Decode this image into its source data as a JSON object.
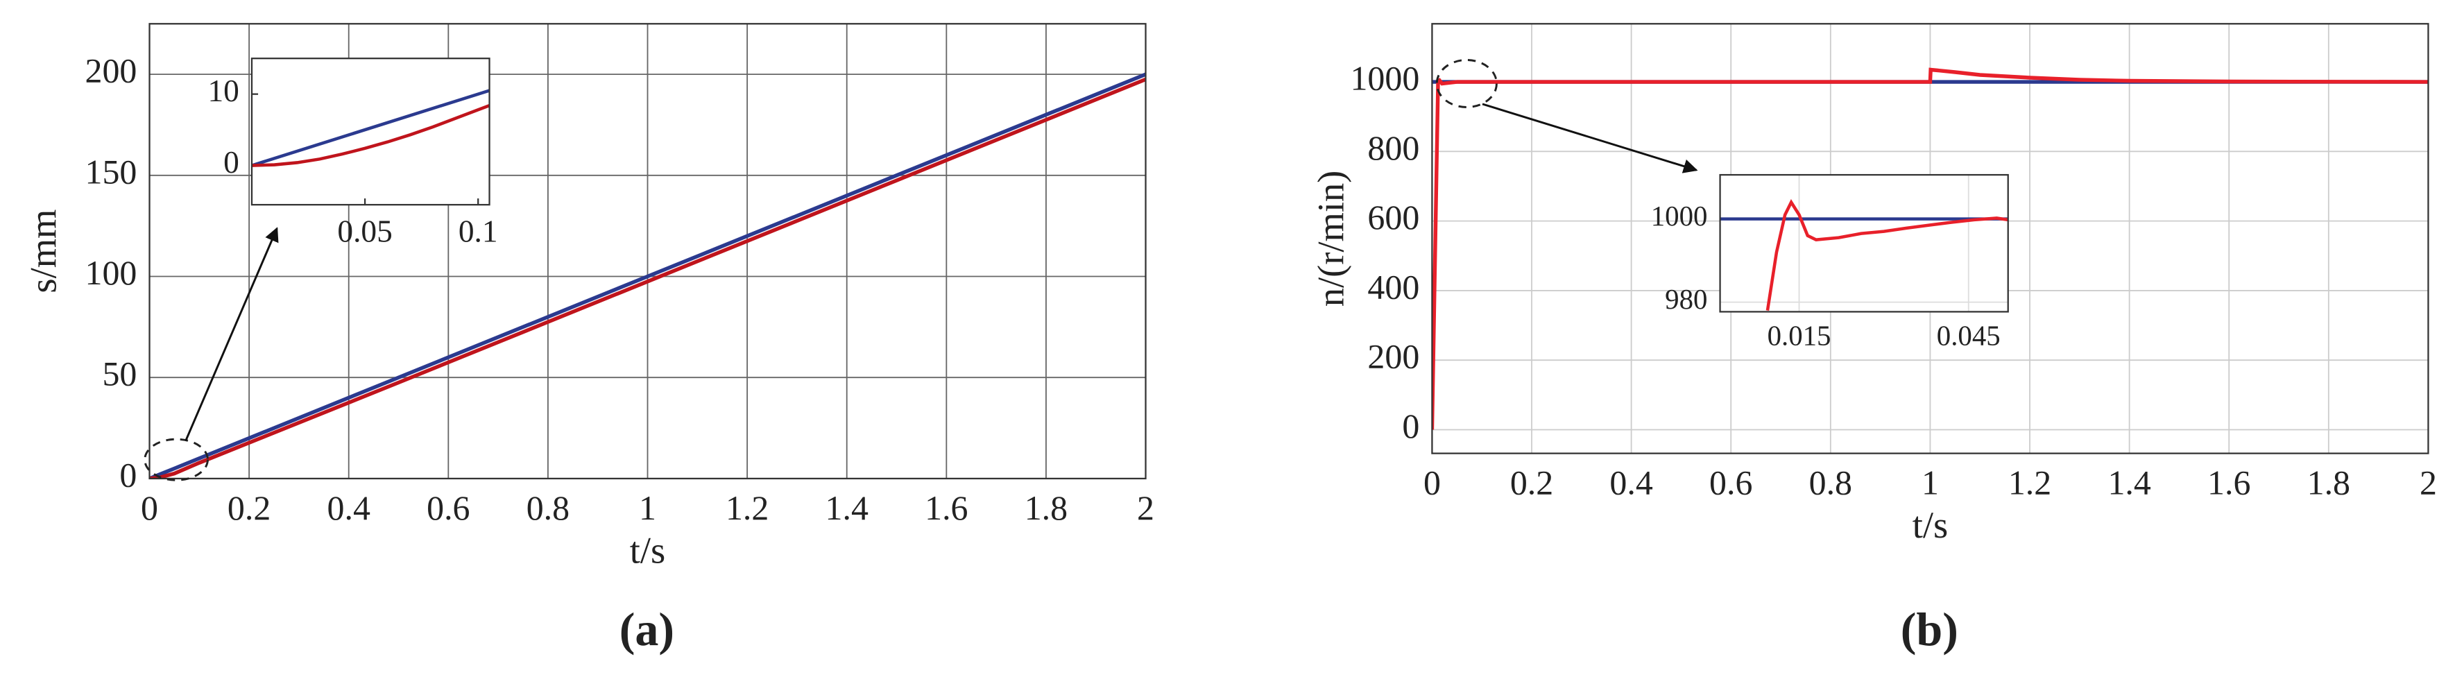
{
  "chart_data": [
    {
      "type": "line",
      "caption": "(a)",
      "xlabel": "t/s",
      "ylabel": "s/mm",
      "xlim": [
        0,
        2
      ],
      "ylim": [
        0,
        225
      ],
      "xticks": [
        0,
        0.2,
        0.4,
        0.6,
        0.8,
        1,
        1.2,
        1.4,
        1.6,
        1.8,
        2
      ],
      "yticks": [
        0,
        50,
        100,
        150,
        200
      ],
      "grid": true,
      "grid_color": "#666666",
      "series": [
        {
          "color": "#2b3a8f",
          "x": [
            0,
            0.02,
            0.05,
            0.1,
            0.5,
            1,
            1.5,
            2
          ],
          "values": [
            0,
            2,
            5,
            10,
            50,
            100,
            150,
            200
          ]
        },
        {
          "color": "#c0141c",
          "x": [
            0,
            0.02,
            0.05,
            0.1,
            0.5,
            1,
            1.5,
            2
          ],
          "values": [
            0,
            0.5,
            2.5,
            7.8,
            47.5,
            97.5,
            147.5,
            197.5
          ]
        }
      ]
    },
    {
      "type": "line",
      "xlim": [
        0,
        0.105
      ],
      "ylim": [
        -5.5,
        15
      ],
      "xticks": [
        0.05,
        0.1
      ],
      "yticks": [
        0,
        10
      ],
      "grid": false,
      "series": [
        {
          "color": "#2b3a8f",
          "x": [
            0,
            0.105
          ],
          "values": [
            0,
            10.5
          ]
        },
        {
          "color": "#c0141c",
          "x": [
            0,
            0.01,
            0.02,
            0.03,
            0.04,
            0.05,
            0.06,
            0.07,
            0.08,
            0.09,
            0.1,
            0.105
          ],
          "values": [
            0,
            0.1,
            0.4,
            0.9,
            1.6,
            2.4,
            3.3,
            4.3,
            5.4,
            6.6,
            7.8,
            8.4
          ]
        }
      ]
    },
    {
      "type": "line",
      "caption": "(b)",
      "xlabel": "t/s",
      "ylabel": "n/(r/min)",
      "xlim": [
        0,
        2
      ],
      "ylim": [
        -68,
        1167
      ],
      "xticks": [
        0,
        0.2,
        0.4,
        0.6,
        0.8,
        1,
        1.2,
        1.4,
        1.6,
        1.8,
        2
      ],
      "yticks": [
        0,
        200,
        400,
        600,
        800,
        1000
      ],
      "grid": true,
      "grid_color": "#cccccc",
      "series": [
        {
          "color": "#2b3a8f",
          "x": [
            0,
            2
          ],
          "values": [
            1000,
            1000
          ]
        },
        {
          "color": "#e8202a",
          "x": [
            0,
            0.012,
            0.015,
            0.02,
            0.05,
            1,
            1.001,
            1.05,
            1.1,
            1.2,
            1.3,
            1.4,
            1.6,
            2
          ],
          "values": [
            0,
            1000,
            1004,
            995,
            1000,
            1000,
            1035,
            1028,
            1020,
            1012,
            1006,
            1003,
            1001,
            1000
          ]
        }
      ]
    },
    {
      "type": "line",
      "xlim": [
        0.001,
        0.052
      ],
      "ylim": [
        977.7,
        1010.6
      ],
      "xticks": [
        0.015,
        0.045
      ],
      "yticks": [
        980,
        1000
      ],
      "grid": true,
      "grid_color": "#dddddd",
      "series": [
        {
          "color": "#2b3a8f",
          "x": [
            0.001,
            0.052
          ],
          "values": [
            1000,
            1000
          ]
        },
        {
          "color": "#e8202a",
          "x": [
            0.0094,
            0.011,
            0.0125,
            0.0136,
            0.015,
            0.0165,
            0.018,
            0.022,
            0.026,
            0.03,
            0.034,
            0.038,
            0.042,
            0.046,
            0.05,
            0.052
          ],
          "values": [
            978,
            992,
            1001,
            1004,
            1001,
            996,
            995,
            995.5,
            996.5,
            997,
            997.8,
            998.5,
            999.2,
            999.8,
            1000.2,
            999.8
          ]
        }
      ]
    }
  ]
}
